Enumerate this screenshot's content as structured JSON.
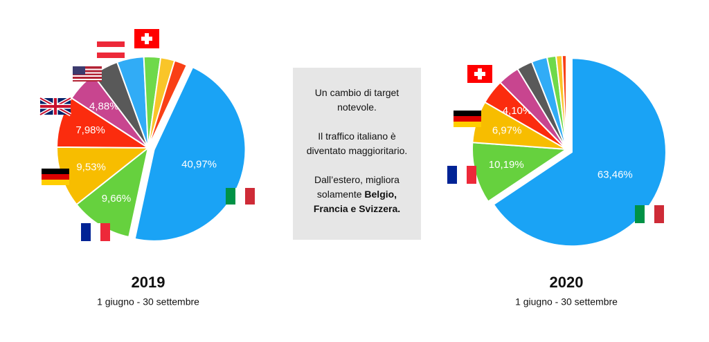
{
  "chart_data": [
    {
      "type": "pie",
      "title": "2019",
      "subtitle": "1 giugno - 30 settembre",
      "values": [
        40.97,
        9.66,
        9.53,
        7.98,
        4.88,
        4.2,
        4.2,
        2.6,
        2.2,
        2.0
      ],
      "value_labels": [
        "40,97%",
        "9,66%",
        "9,53%",
        "7,98%",
        "4,88%",
        null,
        null,
        null,
        null,
        null
      ],
      "colors": [
        "#1aa3f5",
        "#66d13e",
        "#f7bd00",
        "#fb2c0e",
        "#c8458f",
        "#595959",
        "#31acf6",
        "#6fd94a",
        "#f9c529",
        "#f94016"
      ]
    },
    {
      "type": "pie",
      "title": "2020",
      "subtitle": "1 giugno - 30 settembre",
      "values": [
        63.46,
        10.19,
        6.97,
        4.1,
        3.6,
        2.6,
        2.6,
        1.5,
        1.0,
        0.7
      ],
      "value_labels": [
        "63,46%",
        "10,19%",
        "6,97%",
        "4,10%",
        null,
        null,
        null,
        null,
        null,
        null
      ],
      "colors": [
        "#1aa3f5",
        "#66d13e",
        "#f7bd00",
        "#fb2c0e",
        "#c8458f",
        "#595959",
        "#31acf6",
        "#6fd94a",
        "#f9c529",
        "#f94016"
      ]
    }
  ],
  "note": {
    "line1": "Un cambio di target notevole.",
    "line2": "Il traffico italiano è diventato maggioritario.",
    "line3": "Dall’estero, migliora solamente",
    "line3_bold": "Belgio, Francia e Svizzera."
  }
}
